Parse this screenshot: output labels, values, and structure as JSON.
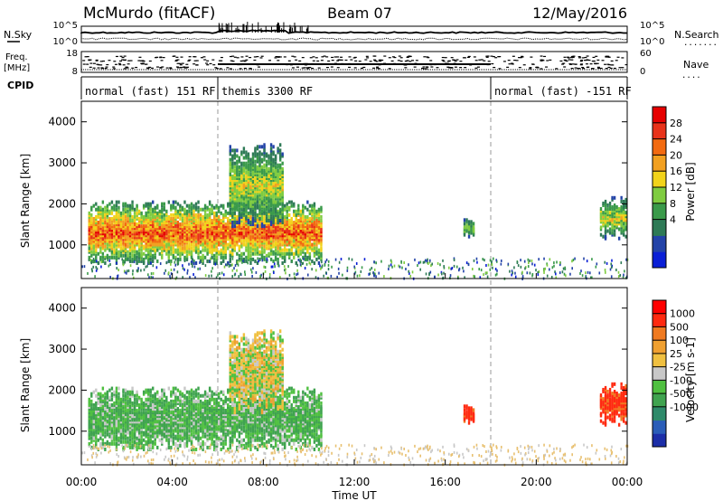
{
  "header": {
    "radar": "McMurdo (fitACF)",
    "beam": "Beam 07",
    "date": "12/May/2016"
  },
  "status_panel": {
    "nsky_label": "N.Sky",
    "freq_label_1": "Freq.",
    "freq_label_2": "[MHz]",
    "cpid_label": "CPID",
    "nsearch_label": "N.Search",
    "nave_label": "Nave",
    "noise_ticks_left": [
      "10^5",
      "10^0"
    ],
    "noise_ticks_right": [
      "10^5",
      "10^0"
    ],
    "freq_ticks": [
      "18",
      "8"
    ],
    "nave_ticks": [
      "60",
      "0"
    ],
    "nsearch_marker": ".......",
    "nave_marker": "....",
    "cpid_segments": [
      {
        "label": "normal (fast) 151 RF",
        "start_hour": 0,
        "end_hour": 6
      },
      {
        "label": "themis 3300 RF",
        "start_hour": 6,
        "end_hour": 18
      },
      {
        "label": "normal (fast) -151 RF",
        "start_hour": 18,
        "end_hour": 24
      }
    ]
  },
  "time_axis": {
    "title": "Time UT",
    "ticks": [
      "00:00",
      "04:00",
      "08:00",
      "12:00",
      "16:00",
      "20:00",
      "00:00"
    ]
  },
  "power_colorbar": {
    "title": "Power [dB]",
    "ticks": [
      "28",
      "24",
      "20",
      "16",
      "12",
      "8",
      "4"
    ],
    "colors": [
      "#0a1fd6",
      "#2343a8",
      "#2e7a56",
      "#3a9a4a",
      "#7fcc40",
      "#f2d31a",
      "#f2a020",
      "#f26a10",
      "#e8321a",
      "#e60000"
    ]
  },
  "velocity_colorbar": {
    "title": "Velocity [m s-1]",
    "ticks": [
      "1000",
      "500",
      "100",
      "25",
      "-25",
      "-100",
      "-500",
      "-1000"
    ],
    "colors": [
      "#1c2ea8",
      "#2a5db8",
      "#2e8a6a",
      "#3fa34f",
      "#4fc040",
      "#c8c8c8",
      "#f0c040",
      "#f0a030",
      "#f07a20",
      "#ff2a10",
      "#ff0000"
    ]
  },
  "chart_data": [
    {
      "type": "heatmap",
      "title": "Power",
      "ylabel": "Slant Range [km]",
      "xlabel": "",
      "yticks": [
        "1000",
        "2000",
        "3000",
        "4000"
      ],
      "xlim": [
        0,
        24
      ],
      "ylim": [
        180,
        4500
      ],
      "echo_regions": [
        {
          "t_start": 0.3,
          "t_end": 10.5,
          "r_low": 600,
          "r_high": 2100,
          "max_power_db": 30
        },
        {
          "t_start": 6.5,
          "t_end": 8.8,
          "r_low": 1500,
          "r_high": 3500,
          "max_power_db": 20
        },
        {
          "t_start": 16.8,
          "t_end": 17.3,
          "r_low": 1200,
          "r_high": 1700,
          "max_power_db": 16
        },
        {
          "t_start": 22.8,
          "t_end": 24.0,
          "r_low": 1200,
          "r_high": 2200,
          "max_power_db": 20
        }
      ]
    },
    {
      "type": "heatmap",
      "title": "Velocity",
      "ylabel": "Slant Range [km]",
      "xlabel": "Time UT",
      "yticks": [
        "1000",
        "2000",
        "3000",
        "4000"
      ],
      "xlim": [
        0,
        24
      ],
      "ylim": [
        180,
        4500
      ],
      "echo_regions": [
        {
          "t_start": 0.3,
          "t_end": 10.5,
          "r_low": 600,
          "r_high": 2100,
          "typical_velocity_ms": 100
        },
        {
          "t_start": 6.5,
          "t_end": 8.8,
          "r_low": 1500,
          "r_high": 3500,
          "typical_velocity_ms": 25
        },
        {
          "t_start": 16.8,
          "t_end": 17.3,
          "r_low": 1200,
          "r_high": 1700,
          "typical_velocity_ms": -300
        },
        {
          "t_start": 22.8,
          "t_end": 24.0,
          "r_low": 1200,
          "r_high": 2200,
          "typical_velocity_ms": -300
        }
      ]
    }
  ]
}
